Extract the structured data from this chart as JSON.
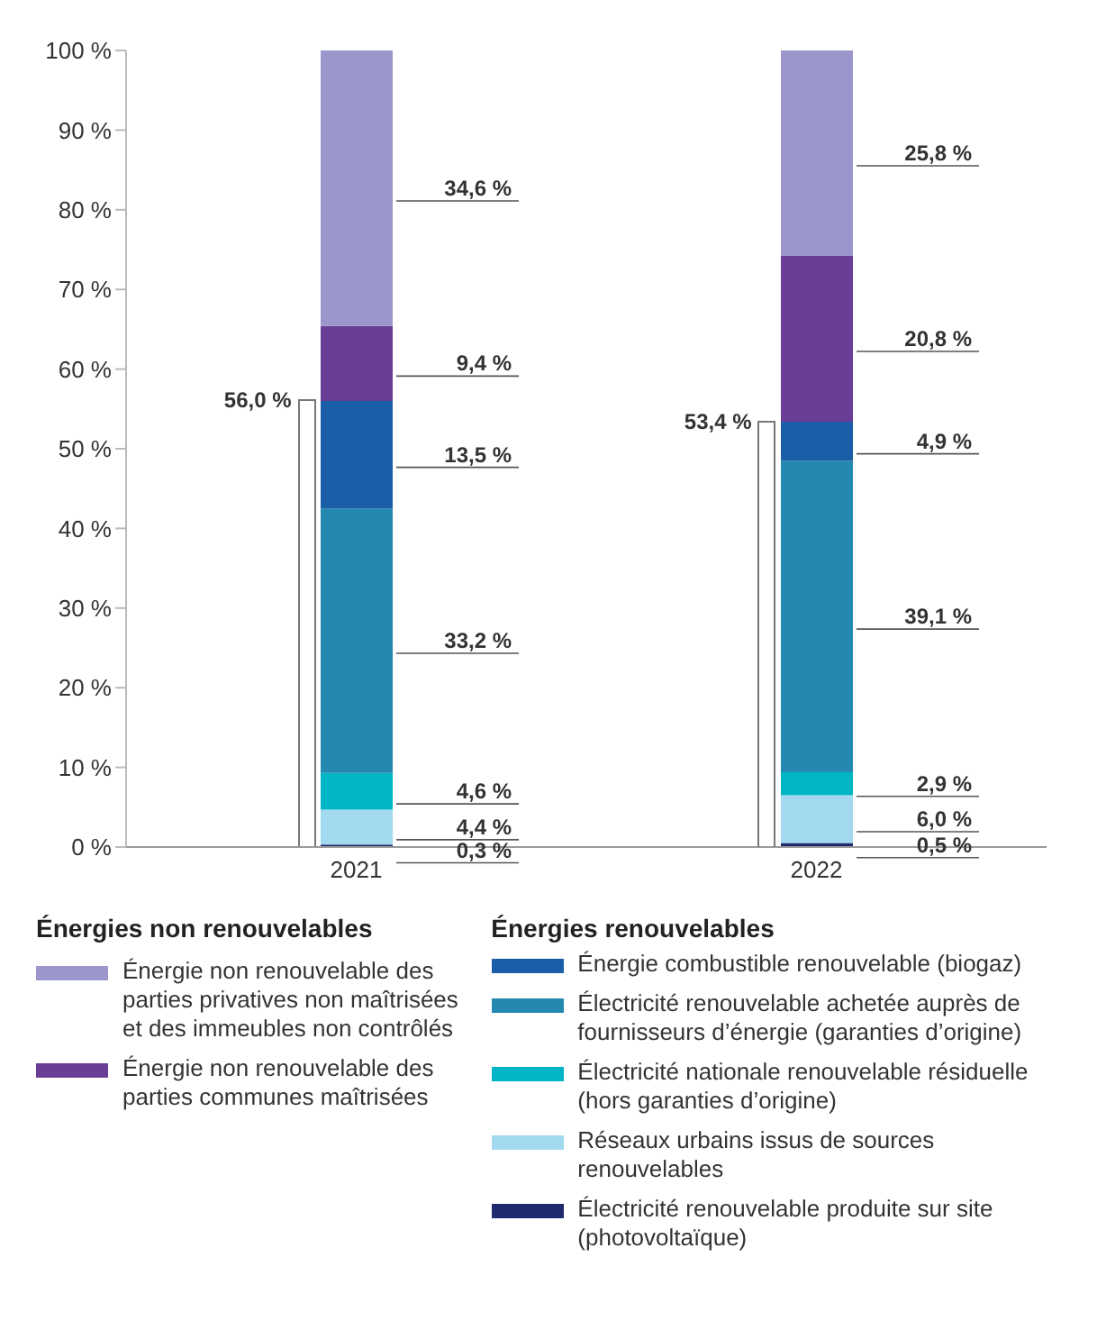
{
  "chart_data": {
    "type": "bar",
    "stacked": true,
    "categories": [
      "2021",
      "2022"
    ],
    "ylim": [
      0,
      100
    ],
    "yticks": [
      {
        "value": 0,
        "label": "0 %"
      },
      {
        "value": 10,
        "label": "10 %"
      },
      {
        "value": 20,
        "label": "20 %"
      },
      {
        "value": 30,
        "label": "30 %"
      },
      {
        "value": 40,
        "label": "40 %"
      },
      {
        "value": 50,
        "label": "50 %"
      },
      {
        "value": 60,
        "label": "60 %"
      },
      {
        "value": 70,
        "label": "70 %"
      },
      {
        "value": 80,
        "label": "80 %"
      },
      {
        "value": 90,
        "label": "90 %"
      },
      {
        "value": 100,
        "label": "100 %"
      }
    ],
    "grid": false,
    "legend": "bottom",
    "annotations": [
      "Énergies non renouvelables",
      "Énergies renouvelables",
      {
        "text": "56,0 %",
        "x": "2021",
        "y": 56.0
      },
      {
        "text": "53,4 %",
        "x": "2022",
        "y": 53.4
      }
    ],
    "series": [
      {
        "name": "Électricité renouvelable produite sur site (photovoltaïque)",
        "color": "#1f2a6e",
        "values": [
          0.3,
          0.5
        ],
        "value_labels": [
          "0,3 %",
          "0,5 %"
        ]
      },
      {
        "name": "Réseaux urbains issus de sources renouvelables",
        "color": "#a3d9ef",
        "values": [
          4.4,
          6.0
        ],
        "value_labels": [
          "4,4 %",
          "6,0 %"
        ]
      },
      {
        "name": "Électricité nationale renouvelable résiduelle (hors garanties d’origine)",
        "color": "#00b5c5",
        "values": [
          4.6,
          2.9
        ],
        "value_labels": [
          "4,6 %",
          "2,9 %"
        ]
      },
      {
        "name": "Électricité renouvelable achetée auprès de fournisseurs d’énergie (garanties d’origine)",
        "color": "#2389b0",
        "values": [
          33.2,
          39.1
        ],
        "value_labels": [
          "33,2 %",
          "39,1 %"
        ]
      },
      {
        "name": "Énergie combustible renouvelable (biogaz)",
        "color": "#1a5ea8",
        "values": [
          13.5,
          4.9
        ],
        "value_labels": [
          "13,5 %",
          "4,9 %"
        ]
      },
      {
        "name": "Énergie non renouvelable des parties communes maîtrisées",
        "color": "#6a3d96",
        "values": [
          9.4,
          20.8
        ],
        "value_labels": [
          "9,4 %",
          "20,8 %"
        ]
      },
      {
        "name": "Énergie non renouvelable des parties privatives non maîtrisées et des immeubles non contrôlés",
        "color": "#9b96cc",
        "values": [
          34.6,
          25.8
        ],
        "value_labels": [
          "34,6 %",
          "25,8 %"
        ]
      }
    ]
  }
}
